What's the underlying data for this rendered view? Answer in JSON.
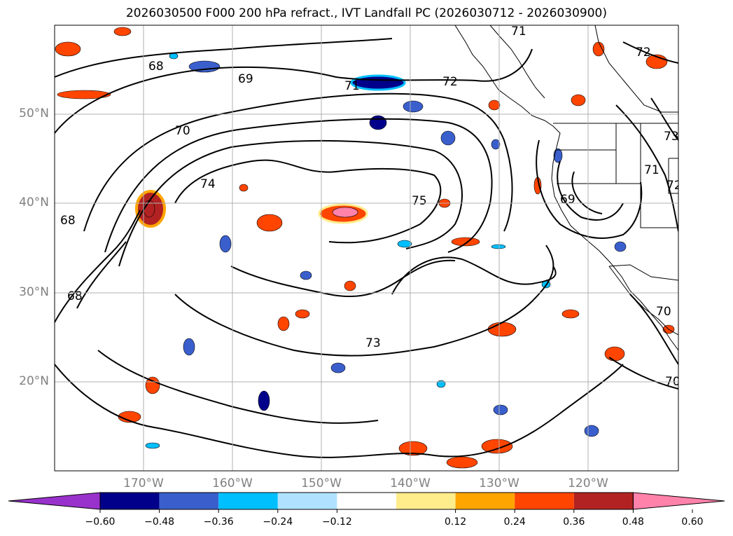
{
  "title": "2026030500 F000 200 hPa refract., IVT Landfall PC (2026030712 - 2026030900)",
  "map": {
    "lat_ticks": [
      "50°N",
      "40°N",
      "30°N",
      "20°N"
    ],
    "lon_ticks": [
      "170°W",
      "160°W",
      "150°W",
      "140°W",
      "130°W",
      "120°W"
    ],
    "contour_labels": [
      "68",
      "69",
      "70",
      "71",
      "72",
      "74",
      "75",
      "73",
      "68",
      "68",
      "69",
      "71",
      "72",
      "73",
      "70",
      "70",
      "71",
      "72"
    ]
  },
  "colorbar": {
    "ticks": [
      "−0.60",
      "−0.48",
      "−0.36",
      "−0.24",
      "−0.12",
      "0.12",
      "0.24",
      "0.36",
      "0.48",
      "0.60"
    ],
    "colors": [
      "#9932CC",
      "#00008B",
      "#3A5FCD",
      "#00BFFF",
      "#B0E2FF",
      "#FFFFFF",
      "#FFEC8B",
      "#FFA500",
      "#FF4500",
      "#B22222",
      "#FF82AB"
    ]
  }
}
